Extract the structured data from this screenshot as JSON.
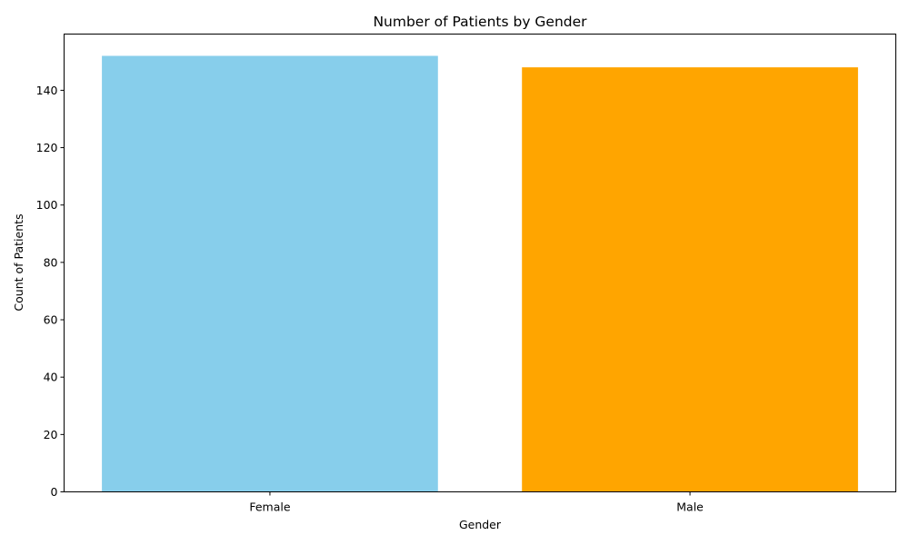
{
  "chart_data": {
    "type": "bar",
    "title": "Number of Patients by Gender",
    "xlabel": "Gender",
    "ylabel": "Count of Patients",
    "categories": [
      "Female",
      "Male"
    ],
    "values": [
      152,
      148
    ],
    "colors": [
      "#87CEEB",
      "#FFA500"
    ],
    "ylim": [
      0,
      159.6
    ],
    "yticks": [
      0,
      20,
      40,
      60,
      80,
      100,
      120,
      140
    ],
    "grid": false
  }
}
